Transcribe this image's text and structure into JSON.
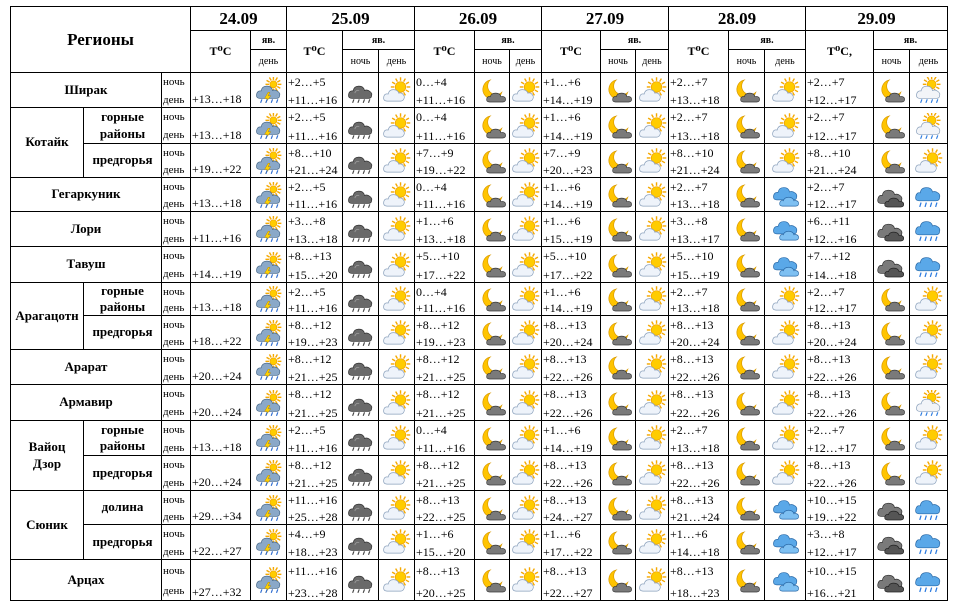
{
  "header": {
    "regions_label": "Регионы",
    "dates": [
      "24.09",
      "25.09",
      "26.09",
      "27.09",
      "28.09",
      "29.09"
    ],
    "temp_label": "T⁰C",
    "temp_label_last": "T⁰C,",
    "phen_label": "яв.",
    "night_label": "ночь",
    "day_label": "день"
  },
  "rows": [
    {
      "region": "Ширак",
      "sub": "",
      "day1": {
        "day": "+13…+18",
        "icon": "storm"
      },
      "forecast": [
        {
          "night": "+2…+5",
          "day": "+11…+16",
          "icons": [
            "rain-cloud",
            "sun-cloud"
          ]
        },
        {
          "night": "0…+4",
          "day": "+11…+16",
          "icons": [
            "moon-cloud",
            "sun-cloud"
          ]
        },
        {
          "night": "+1…+6",
          "day": "+14…+19",
          "icons": [
            "moon-cloud",
            "sun-cloud"
          ]
        },
        {
          "night": "+2…+7",
          "day": "+13…+18",
          "icons": [
            "moon-cloud",
            "sun-cloud"
          ]
        },
        {
          "night": "+2…+7",
          "day": "+12…+17",
          "icons": [
            "moon-cloud",
            "sun-rain"
          ]
        }
      ]
    },
    {
      "region": "Котайк",
      "sub": "горные районы",
      "day1": {
        "day": "+13…+18",
        "icon": "storm"
      },
      "forecast": [
        {
          "night": "+2…+5",
          "day": "+11…+16",
          "icons": [
            "rain-cloud",
            "sun-cloud"
          ]
        },
        {
          "night": "0…+4",
          "day": "+11…+16",
          "icons": [
            "moon-cloud",
            "sun-cloud"
          ]
        },
        {
          "night": "+1…+6",
          "day": "+14…+19",
          "icons": [
            "moon-cloud",
            "sun-cloud"
          ]
        },
        {
          "night": "+2…+7",
          "day": "+13…+18",
          "icons": [
            "moon-cloud",
            "sun-cloud"
          ]
        },
        {
          "night": "+2…+7",
          "day": "+12…+17",
          "icons": [
            "moon-cloud",
            "sun-rain"
          ]
        }
      ]
    },
    {
      "region": "",
      "sub": "предгорья",
      "day1": {
        "day": "+19…+22",
        "icon": "storm"
      },
      "forecast": [
        {
          "night": "+8…+10",
          "day": "+21…+24",
          "icons": [
            "rain-cloud",
            "sun-cloud"
          ]
        },
        {
          "night": "+7…+9",
          "day": "+19…+22",
          "icons": [
            "moon-cloud",
            "sun-cloud"
          ]
        },
        {
          "night": "+7…+9",
          "day": "+20…+23",
          "icons": [
            "moon-cloud",
            "sun-cloud"
          ]
        },
        {
          "night": "+8…+10",
          "day": "+21…+24",
          "icons": [
            "moon-cloud",
            "sun-cloud"
          ]
        },
        {
          "night": "+8…+10",
          "day": "+21…+24",
          "icons": [
            "moon-cloud",
            "sun-cloud"
          ]
        }
      ]
    },
    {
      "region": "Гегаркуник",
      "sub": "",
      "day1": {
        "day": "+13…+18",
        "icon": "storm"
      },
      "forecast": [
        {
          "night": "+2…+5",
          "day": "+11…+16",
          "icons": [
            "rain-cloud",
            "sun-cloud"
          ]
        },
        {
          "night": "0…+4",
          "day": "+11…+16",
          "icons": [
            "moon-cloud",
            "sun-cloud"
          ]
        },
        {
          "night": "+1…+6",
          "day": "+14…+19",
          "icons": [
            "moon-cloud",
            "sun-cloud"
          ]
        },
        {
          "night": "+2…+7",
          "day": "+13…+18",
          "icons": [
            "moon-cloud",
            "cloud"
          ]
        },
        {
          "night": "+2…+7",
          "day": "+12…+17",
          "icons": [
            "dark-cloud",
            "rain"
          ]
        }
      ]
    },
    {
      "region": "Лори",
      "sub": "",
      "day1": {
        "day": "+11…+16",
        "icon": "storm"
      },
      "forecast": [
        {
          "night": "+3…+8",
          "day": "+13…+18",
          "icons": [
            "rain-cloud",
            "sun-cloud"
          ]
        },
        {
          "night": "+1…+6",
          "day": "+13…+18",
          "icons": [
            "moon-cloud",
            "sun-cloud"
          ]
        },
        {
          "night": "+1…+6",
          "day": "+15…+19",
          "icons": [
            "moon-cloud",
            "sun-cloud"
          ]
        },
        {
          "night": "+3…+8",
          "day": "+13…+17",
          "icons": [
            "moon-cloud",
            "cloud"
          ]
        },
        {
          "night": "+6…+11",
          "day": "+12…+16",
          "icons": [
            "dark-cloud",
            "rain"
          ]
        }
      ]
    },
    {
      "region": "Тавуш",
      "sub": "",
      "day1": {
        "day": "+14…+19",
        "icon": "storm"
      },
      "forecast": [
        {
          "night": "+8…+13",
          "day": "+15…+20",
          "icons": [
            "rain-cloud",
            "sun-cloud"
          ]
        },
        {
          "night": "+5…+10",
          "day": "+17…+22",
          "icons": [
            "moon-cloud",
            "sun-cloud"
          ]
        },
        {
          "night": "+5…+10",
          "day": "+17…+22",
          "icons": [
            "moon-cloud",
            "sun-cloud"
          ]
        },
        {
          "night": "+5…+10",
          "day": "+15…+19",
          "icons": [
            "moon-cloud",
            "cloud"
          ]
        },
        {
          "night": "+7…+12",
          "day": "+14…+18",
          "icons": [
            "dark-cloud",
            "rain"
          ]
        }
      ]
    },
    {
      "region": "Арагацотн",
      "sub": "горные районы",
      "day1": {
        "day": "+13…+18",
        "icon": "storm"
      },
      "forecast": [
        {
          "night": "+2…+5",
          "day": "+11…+16",
          "icons": [
            "rain-cloud",
            "sun-cloud"
          ]
        },
        {
          "night": "0…+4",
          "day": "+11…+16",
          "icons": [
            "moon-cloud",
            "sun-cloud"
          ]
        },
        {
          "night": "+1…+6",
          "day": "+14…+19",
          "icons": [
            "moon-cloud",
            "sun-cloud"
          ]
        },
        {
          "night": "+2…+7",
          "day": "+13…+18",
          "icons": [
            "moon-cloud",
            "sun-cloud"
          ]
        },
        {
          "night": "+2…+7",
          "day": "+12…+17",
          "icons": [
            "moon-cloud",
            "sun-cloud"
          ]
        }
      ]
    },
    {
      "region": "",
      "sub": "предгорья",
      "day1": {
        "day": "+18…+22",
        "icon": "storm"
      },
      "forecast": [
        {
          "night": "+8…+12",
          "day": "+19…+23",
          "icons": [
            "rain-cloud",
            "sun-cloud"
          ]
        },
        {
          "night": "+8…+12",
          "day": "+19…+23",
          "icons": [
            "moon-cloud",
            "sun-cloud"
          ]
        },
        {
          "night": "+8…+13",
          "day": "+20…+24",
          "icons": [
            "moon-cloud",
            "sun-cloud"
          ]
        },
        {
          "night": "+8…+13",
          "day": "+20…+24",
          "icons": [
            "moon-cloud",
            "sun-cloud"
          ]
        },
        {
          "night": "+8…+13",
          "day": "+20…+24",
          "icons": [
            "moon-cloud",
            "sun-cloud"
          ]
        }
      ]
    },
    {
      "region": "Арарат",
      "sub": "",
      "day1": {
        "day": "+20…+24",
        "icon": "storm"
      },
      "forecast": [
        {
          "night": "+8…+12",
          "day": "+21…+25",
          "icons": [
            "rain-cloud",
            "sun-cloud"
          ]
        },
        {
          "night": "+8…+12",
          "day": "+21…+25",
          "icons": [
            "moon-cloud",
            "sun-cloud"
          ]
        },
        {
          "night": "+8…+13",
          "day": "+22…+26",
          "icons": [
            "moon-cloud",
            "sun-cloud"
          ]
        },
        {
          "night": "+8…+13",
          "day": "+22…+26",
          "icons": [
            "moon-cloud",
            "sun-cloud"
          ]
        },
        {
          "night": "+8…+13",
          "day": "+22…+26",
          "icons": [
            "moon-cloud",
            "sun-cloud"
          ]
        }
      ]
    },
    {
      "region": "Армавир",
      "sub": "",
      "day1": {
        "day": "+20…+24",
        "icon": "storm"
      },
      "forecast": [
        {
          "night": "+8…+12",
          "day": "+21…+25",
          "icons": [
            "rain-cloud",
            "sun-cloud"
          ]
        },
        {
          "night": "+8…+12",
          "day": "+21…+25",
          "icons": [
            "moon-cloud",
            "sun-cloud"
          ]
        },
        {
          "night": "+8…+13",
          "day": "+22…+26",
          "icons": [
            "moon-cloud",
            "sun-cloud"
          ]
        },
        {
          "night": "+8…+13",
          "day": "+22…+26",
          "icons": [
            "moon-cloud",
            "sun-cloud"
          ]
        },
        {
          "night": "+8…+13",
          "day": "+22…+26",
          "icons": [
            "moon-cloud",
            "sun-rain"
          ]
        }
      ]
    },
    {
      "region": "Вайоц Дзор",
      "sub": "горные районы",
      "day1": {
        "day": "+13…+18",
        "icon": "storm"
      },
      "forecast": [
        {
          "night": "+2…+5",
          "day": "+11…+16",
          "icons": [
            "rain-cloud",
            "sun-cloud"
          ]
        },
        {
          "night": "0…+4",
          "day": "+11…+16",
          "icons": [
            "moon-cloud",
            "sun-cloud"
          ]
        },
        {
          "night": "+1…+6",
          "day": "+14…+19",
          "icons": [
            "moon-cloud",
            "sun-cloud"
          ]
        },
        {
          "night": "+2…+7",
          "day": "+13…+18",
          "icons": [
            "moon-cloud",
            "sun-cloud"
          ]
        },
        {
          "night": "+2…+7",
          "day": "+12…+17",
          "icons": [
            "moon-cloud",
            "sun-cloud"
          ]
        }
      ]
    },
    {
      "region": "",
      "sub": "предгорья",
      "day1": {
        "day": "+20…+24",
        "icon": "storm"
      },
      "forecast": [
        {
          "night": "+8…+12",
          "day": "+21…+25",
          "icons": [
            "rain-cloud",
            "sun-cloud"
          ]
        },
        {
          "night": "+8…+12",
          "day": "+21…+25",
          "icons": [
            "moon-cloud",
            "sun-cloud"
          ]
        },
        {
          "night": "+8…+13",
          "day": "+22…+26",
          "icons": [
            "moon-cloud",
            "sun-cloud"
          ]
        },
        {
          "night": "+8…+13",
          "day": "+22…+26",
          "icons": [
            "moon-cloud",
            "sun-cloud"
          ]
        },
        {
          "night": "+8…+13",
          "day": "+22…+26",
          "icons": [
            "moon-cloud",
            "sun-cloud"
          ]
        }
      ]
    },
    {
      "region": "Сюник",
      "sub": "долина",
      "day1": {
        "day": "+29…+34",
        "icon": "storm"
      },
      "forecast": [
        {
          "night": "+11…+16",
          "day": "+25…+28",
          "icons": [
            "rain-cloud",
            "sun-cloud"
          ]
        },
        {
          "night": "+8…+13",
          "day": "+22…+25",
          "icons": [
            "moon-cloud",
            "sun-cloud"
          ]
        },
        {
          "night": "+8…+13",
          "day": "+24…+27",
          "icons": [
            "moon-cloud",
            "sun-cloud"
          ]
        },
        {
          "night": "+8…+13",
          "day": "+21…+24",
          "icons": [
            "moon-cloud",
            "cloud"
          ]
        },
        {
          "night": "+10…+15",
          "day": "+19…+22",
          "icons": [
            "dark-cloud",
            "rain"
          ]
        }
      ]
    },
    {
      "region": "",
      "sub": "предгорья",
      "day1": {
        "day": "+22…+27",
        "icon": "storm"
      },
      "forecast": [
        {
          "night": "+4…+9",
          "day": "+18…+23",
          "icons": [
            "rain-cloud",
            "sun-cloud"
          ]
        },
        {
          "night": "+1…+6",
          "day": "+15…+20",
          "icons": [
            "moon-cloud",
            "sun-cloud"
          ]
        },
        {
          "night": "+1…+6",
          "day": "+17…+22",
          "icons": [
            "moon-cloud",
            "sun-cloud"
          ]
        },
        {
          "night": "+1…+6",
          "day": "+14…+18",
          "icons": [
            "moon-cloud",
            "cloud"
          ]
        },
        {
          "night": "+3…+8",
          "day": "+12…+17",
          "icons": [
            "dark-cloud",
            "rain"
          ]
        }
      ]
    },
    {
      "region": "Арцах",
      "sub": "",
      "day1": {
        "day": "+27…+32",
        "icon": "storm"
      },
      "forecast": [
        {
          "night": "+11…+16",
          "day": "+23…+28",
          "icons": [
            "rain-cloud",
            "sun-cloud"
          ]
        },
        {
          "night": "+8…+13",
          "day": "+20…+25",
          "icons": [
            "moon-cloud",
            "sun-cloud"
          ]
        },
        {
          "night": "+8…+13",
          "day": "+22…+27",
          "icons": [
            "moon-cloud",
            "sun-cloud"
          ]
        },
        {
          "night": "+8…+13",
          "day": "+18…+23",
          "icons": [
            "moon-cloud",
            "cloud"
          ]
        },
        {
          "night": "+10…+15",
          "day": "+16…+21",
          "icons": [
            "dark-cloud",
            "rain"
          ]
        }
      ]
    }
  ]
}
